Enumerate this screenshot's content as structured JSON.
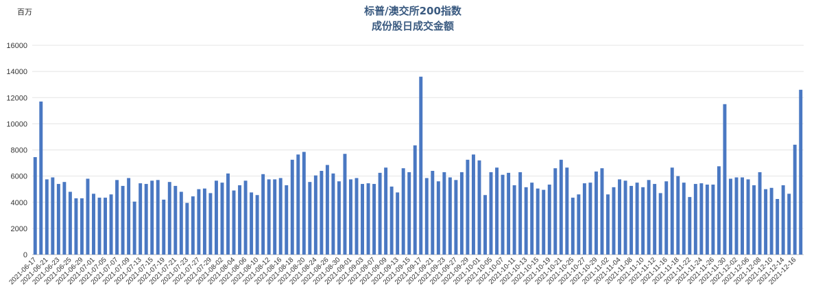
{
  "chart_data": {
    "type": "bar",
    "title": "标普/澳交所200指数",
    "subtitle": "成份股日成交金额",
    "unit_label": "百万",
    "ylim": [
      0,
      16000
    ],
    "yticks": [
      0,
      2000,
      4000,
      6000,
      8000,
      10000,
      12000,
      14000,
      16000
    ],
    "grid": true,
    "bar_color": "#4a78c2",
    "x_tick_labels": [
      "2021-06-17",
      "2021-06-21",
      "2021-06-23",
      "2021-06-25",
      "2021-06-29",
      "2021-07-01",
      "2021-07-05",
      "2021-07-07",
      "2021-07-09",
      "2021-07-13",
      "2021-07-15",
      "2021-07-19",
      "2021-07-21",
      "2021-07-23",
      "2021-07-27",
      "2021-07-29",
      "2021-08-02",
      "2021-08-04",
      "2021-08-06",
      "2021-08-10",
      "2021-08-12",
      "2021-08-16",
      "2021-08-18",
      "2021-08-20",
      "2021-08-24",
      "2021-08-26",
      "2021-08-30",
      "2021-09-01",
      "2021-09-03",
      "2021-09-07",
      "2021-09-09",
      "2021-09-13",
      "2021-09-15",
      "2021-09-17",
      "2021-09-21",
      "2021-09-23",
      "2021-09-27",
      "2021-09-29",
      "2021-10-01",
      "2021-10-05",
      "2021-10-07",
      "2021-10-11",
      "2021-10-13",
      "2021-10-15",
      "2021-10-19",
      "2021-10-21",
      "2021-10-25",
      "2021-10-27",
      "2021-10-29",
      "2021-11-02",
      "2021-11-04",
      "2021-11-08",
      "2021-11-10",
      "2021-11-12",
      "2021-11-16",
      "2021-11-18",
      "2021-11-22",
      "2021-11-24",
      "2021-11-26",
      "2021-11-30",
      "2021-12-02",
      "2021-12-06",
      "2021-12-08",
      "2021-12-10",
      "2021-12-14",
      "2021-12-16"
    ],
    "series": [
      {
        "values": [
          7450,
          11700,
          5750,
          5900,
          5400,
          5550,
          4800,
          4300,
          4300,
          5800,
          4650,
          4350,
          4350,
          4600,
          5700,
          5250,
          5850,
          4050,
          5450,
          5400,
          5650,
          5700,
          4200,
          5550,
          5250,
          4800,
          3950,
          4450,
          5000,
          5050,
          4700,
          5650,
          5500,
          6200,
          4900,
          5300,
          5650,
          4750,
          4550,
          6150,
          5750,
          5750,
          5850,
          5300,
          7250,
          7650,
          7850,
          5550,
          6050,
          6400,
          6850,
          6200,
          5600,
          7700,
          5750,
          5850,
          5400,
          5450,
          5400,
          6250,
          6650,
          5200,
          4750,
          6600,
          6300,
          8350,
          13600,
          5850,
          6400,
          5600,
          6300,
          5900,
          5700,
          6300,
          7250,
          7650,
          7200,
          4550,
          6300,
          6650,
          6100,
          6250,
          5300,
          6300,
          5150,
          5500,
          5050,
          4950,
          5350,
          6600,
          7250,
          6650,
          4350,
          4600,
          5450,
          5500,
          6350,
          6600,
          4600,
          5150,
          5750,
          5650,
          5250,
          5500,
          5150,
          5700,
          5400,
          4700,
          5600,
          6650,
          6000,
          5500,
          4400,
          5400,
          5450,
          5350,
          5350,
          6750,
          11500,
          5800,
          5900,
          5900,
          5750,
          5300,
          6300,
          5000,
          5100,
          4250,
          5300,
          4650,
          8400,
          12600
        ]
      }
    ]
  }
}
